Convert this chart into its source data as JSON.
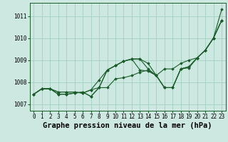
{
  "title": "Graphe pression niveau de la mer (hPa)",
  "xlabel_hours": [
    0,
    1,
    2,
    3,
    4,
    5,
    6,
    7,
    8,
    9,
    10,
    11,
    12,
    13,
    14,
    15,
    16,
    17,
    18,
    19,
    20,
    21,
    22,
    23
  ],
  "ylim": [
    1006.7,
    1011.6
  ],
  "yticks": [
    1007,
    1008,
    1009,
    1010,
    1011
  ],
  "background_color": "#cce8e0",
  "grid_color": "#99ccbb",
  "line_color": "#1a5c2a",
  "series": [
    [
      1007.45,
      1007.7,
      1007.7,
      1007.55,
      1007.55,
      1007.55,
      1007.5,
      1007.65,
      1007.75,
      1008.55,
      1008.75,
      1008.95,
      1009.05,
      1009.05,
      1008.6,
      1008.3,
      1007.75,
      1007.75,
      1008.6,
      1008.7,
      1009.1,
      1009.45,
      1010.0,
      1010.8
    ],
    [
      1007.45,
      1007.7,
      1007.7,
      1007.45,
      1007.45,
      1007.5,
      1007.55,
      1007.35,
      1007.75,
      1007.75,
      1008.15,
      1008.2,
      1008.3,
      1008.45,
      1008.55,
      1008.3,
      1007.75,
      1007.75,
      1008.6,
      1008.65,
      1009.1,
      1009.45,
      1010.0,
      1010.8
    ],
    [
      1007.45,
      1007.7,
      1007.7,
      1007.55,
      1007.55,
      1007.55,
      1007.5,
      1007.65,
      1008.1,
      1008.55,
      1008.75,
      1008.95,
      1009.05,
      1008.55,
      1008.5,
      1008.3,
      1007.75,
      1007.75,
      1008.6,
      1008.7,
      1009.1,
      1009.45,
      1010.0,
      1010.8
    ],
    [
      1007.45,
      1007.7,
      1007.7,
      1007.45,
      1007.45,
      1007.5,
      1007.55,
      1007.35,
      1007.75,
      1008.55,
      1008.75,
      1008.95,
      1009.05,
      1009.05,
      1008.85,
      1008.3,
      1008.6,
      1008.6,
      1008.85,
      1009.0,
      1009.1,
      1009.45,
      1010.0,
      1011.3
    ]
  ],
  "line_width": 0.8,
  "marker": "D",
  "marker_size": 1.8,
  "title_fontsize": 7.5,
  "tick_fontsize": 5.5,
  "figsize": [
    3.2,
    2.0
  ],
  "dpi": 100
}
